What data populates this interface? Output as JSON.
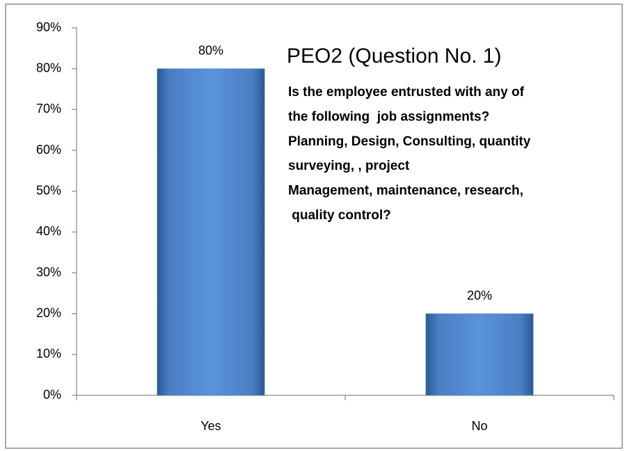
{
  "chart_data": {
    "type": "bar",
    "title": "PEO2 (Question No. 1)",
    "subtitle": [
      "Is the employee entrusted with any of",
      "the following  job assignments?",
      "Planning, Design, Consulting, quantity",
      "surveying, , project",
      "Management, maintenance, research,",
      " quality control?"
    ],
    "categories": [
      "Yes",
      "No"
    ],
    "values": [
      80,
      20
    ],
    "value_labels": [
      "80%",
      "20%"
    ],
    "color": "#4f81bd",
    "ylim": [
      0,
      90
    ],
    "yticks": [
      {
        "value": 0,
        "label": "0%"
      },
      {
        "value": 10,
        "label": "10%"
      },
      {
        "value": 20,
        "label": "20%"
      },
      {
        "value": 30,
        "label": "30%"
      },
      {
        "value": 40,
        "label": "40%"
      },
      {
        "value": 50,
        "label": "50%"
      },
      {
        "value": 60,
        "label": "60%"
      },
      {
        "value": 70,
        "label": "70%"
      },
      {
        "value": 80,
        "label": "80%"
      },
      {
        "value": 90,
        "label": "90%"
      }
    ],
    "grid": false
  }
}
